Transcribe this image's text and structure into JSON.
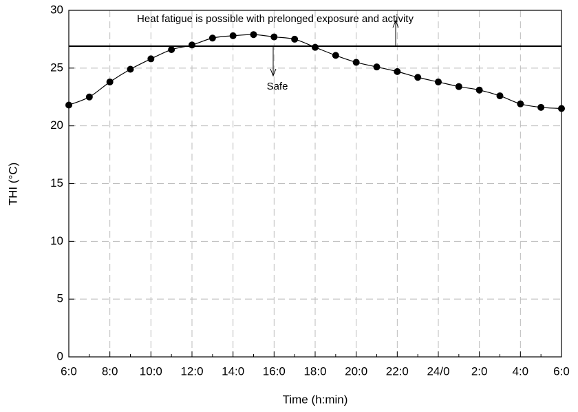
{
  "chart_data": {
    "type": "line",
    "x_label": "Time (h:min)",
    "y_label": "THI (°C)",
    "categories": [
      "6:0",
      null,
      "8:0",
      null,
      "10:0",
      null,
      "12:0",
      null,
      "14:0",
      null,
      "16:0",
      null,
      "18:0",
      null,
      "20:0",
      null,
      "22:0",
      null,
      "24/0",
      null,
      "2:0",
      null,
      "4:0",
      null,
      "6:0"
    ],
    "values": [
      21.8,
      22.5,
      23.8,
      24.9,
      25.8,
      26.6,
      27.0,
      27.6,
      27.8,
      27.9,
      27.7,
      27.5,
      26.8,
      26.1,
      25.5,
      25.1,
      24.7,
      24.2,
      23.8,
      23.4,
      23.1,
      22.6,
      21.9,
      21.6,
      21.5
    ],
    "color": "#000000",
    "ylim": [
      0,
      30
    ],
    "yticks": [
      0,
      5,
      10,
      15,
      20,
      25,
      30
    ],
    "grid": true,
    "threshold": 26.9,
    "annotation_above": "Heat fatigue is possible with prelonged exposure and activity",
    "annotation_below": "Safe"
  }
}
